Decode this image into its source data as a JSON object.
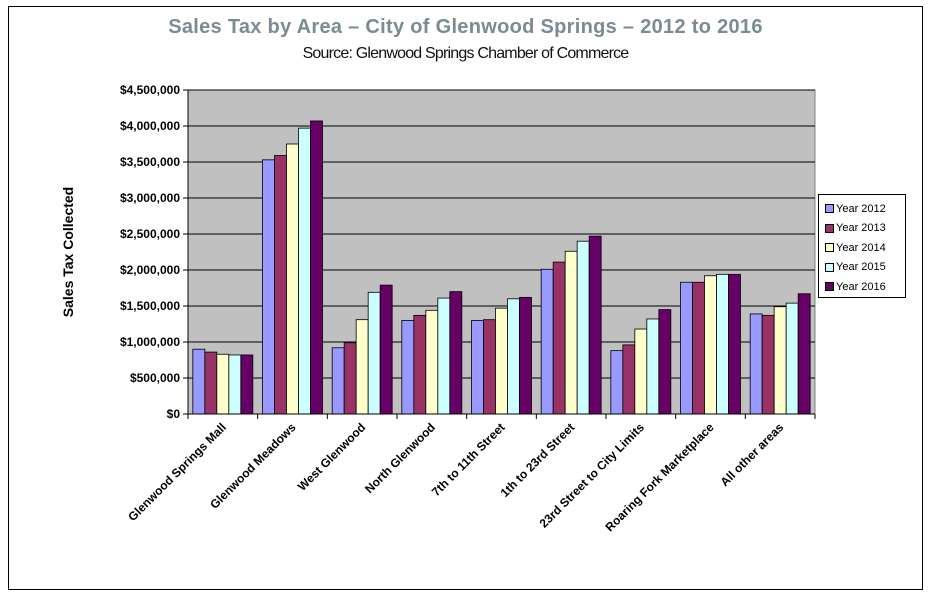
{
  "colors": {
    "plot_background": "#c0c0c0",
    "title": "#7a8b93",
    "series": [
      "#9999ff",
      "#993366",
      "#ffffcc",
      "#ccffff",
      "#660066"
    ]
  },
  "chart_data": {
    "type": "bar",
    "title": "Sales Tax by Area – City of Glenwood Springs – 2012 to 2016",
    "subtitle": "Source: Glenwood Springs Chamber of Commerce",
    "xlabel": "",
    "ylabel": "Sales Tax Collected",
    "ylim": [
      0,
      4500000
    ],
    "y_ticks": [
      0,
      500000,
      1000000,
      1500000,
      2000000,
      2500000,
      3000000,
      3500000,
      4000000,
      4500000
    ],
    "y_tick_labels": [
      "$0",
      "$500,000",
      "$1,000,000",
      "$1,500,000",
      "$2,000,000",
      "$2,500,000",
      "$3,000,000",
      "$3,500,000",
      "$4,000,000",
      "$4,500,000"
    ],
    "grid": true,
    "legend_position": "right",
    "categories": [
      "Glenwood Springs Mall",
      "Glenwood Meadows",
      "West Glenwood",
      "North Glenwood",
      "7th to 11th Street",
      "1th to 23rd Street",
      "23rd Street to City Limits",
      "Roaring Fork Marketplace",
      "All other areas"
    ],
    "series": [
      {
        "name": "Year 2012",
        "values": [
          900000,
          3530000,
          920000,
          1300000,
          1300000,
          2010000,
          880000,
          1830000,
          1390000
        ]
      },
      {
        "name": "Year 2013",
        "values": [
          860000,
          3590000,
          990000,
          1370000,
          1310000,
          2110000,
          960000,
          1830000,
          1370000
        ]
      },
      {
        "name": "Year 2014",
        "values": [
          830000,
          3750000,
          1310000,
          1440000,
          1470000,
          2260000,
          1180000,
          1920000,
          1490000
        ]
      },
      {
        "name": "Year 2015",
        "values": [
          820000,
          3970000,
          1690000,
          1610000,
          1600000,
          2400000,
          1320000,
          1940000,
          1540000
        ]
      },
      {
        "name": "Year 2016",
        "values": [
          820000,
          4070000,
          1790000,
          1700000,
          1620000,
          2470000,
          1450000,
          1940000,
          1670000
        ]
      }
    ]
  }
}
